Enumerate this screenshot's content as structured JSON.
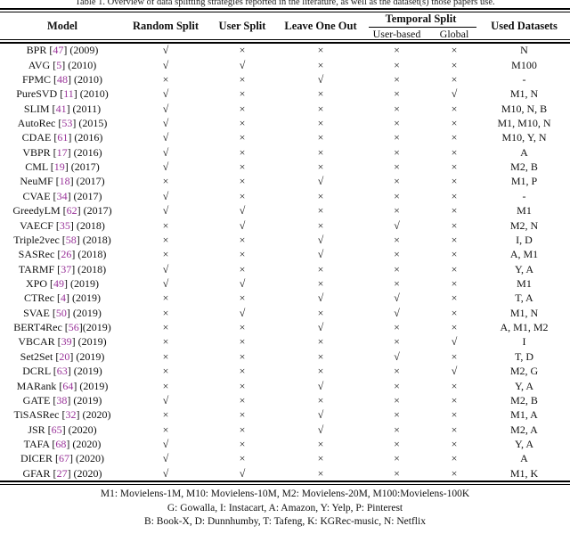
{
  "caption": "Table 1. Overview of data splitting strategies reported in the literature, as well as the dataset(s) those papers use.",
  "colors": {
    "citation": "#993399",
    "text": "#111111",
    "background": "#ffffff"
  },
  "glyphs": {
    "check": "√",
    "cross": "×"
  },
  "header": {
    "model": "Model",
    "random_split": "Random Split",
    "user_split": "User Split",
    "leave_one_out": "Leave One Out",
    "temporal_split": "Temporal Split",
    "user_based": "User-based",
    "global": "Global",
    "used_datasets": "Used Datasets"
  },
  "rows": [
    {
      "model_pre": "BPR [",
      "ref": "47",
      "model_post": "] (2009)",
      "random": "√",
      "user": "×",
      "loo": "×",
      "temporal_user": "×",
      "temporal_global": "×",
      "datasets": "N"
    },
    {
      "model_pre": "AVG [",
      "ref": "5",
      "model_post": "] (2010)",
      "random": "√",
      "user": "√",
      "loo": "×",
      "temporal_user": "×",
      "temporal_global": "×",
      "datasets": "M100"
    },
    {
      "model_pre": "FPMC [",
      "ref": "48",
      "model_post": "] (2010)",
      "random": "×",
      "user": "×",
      "loo": "√",
      "temporal_user": "×",
      "temporal_global": "×",
      "datasets": "-"
    },
    {
      "model_pre": "PureSVD [",
      "ref": "11",
      "model_post": "] (2010)",
      "random": "√",
      "user": "×",
      "loo": "×",
      "temporal_user": "×",
      "temporal_global": "√",
      "datasets": "M1, N"
    },
    {
      "model_pre": "SLIM [",
      "ref": "41",
      "model_post": "] (2011)",
      "random": "√",
      "user": "×",
      "loo": "×",
      "temporal_user": "×",
      "temporal_global": "×",
      "datasets": "M10, N, B"
    },
    {
      "model_pre": "AutoRec [",
      "ref": "53",
      "model_post": "] (2015)",
      "random": "√",
      "user": "×",
      "loo": "×",
      "temporal_user": "×",
      "temporal_global": "×",
      "datasets": "M1, M10, N"
    },
    {
      "model_pre": "CDAE [",
      "ref": "61",
      "model_post": "] (2016)",
      "random": "√",
      "user": "×",
      "loo": "×",
      "temporal_user": "×",
      "temporal_global": "×",
      "datasets": "M10, Y, N"
    },
    {
      "model_pre": "VBPR [",
      "ref": "17",
      "model_post": "] (2016)",
      "random": "√",
      "user": "×",
      "loo": "×",
      "temporal_user": "×",
      "temporal_global": "×",
      "datasets": "A"
    },
    {
      "model_pre": "CML [",
      "ref": "19",
      "model_post": "] (2017)",
      "random": "√",
      "user": "×",
      "loo": "×",
      "temporal_user": "×",
      "temporal_global": "×",
      "datasets": "M2, B"
    },
    {
      "model_pre": "NeuMF [",
      "ref": "18",
      "model_post": "] (2017)",
      "random": "×",
      "user": "×",
      "loo": "√",
      "temporal_user": "×",
      "temporal_global": "×",
      "datasets": "M1, P"
    },
    {
      "model_pre": "CVAE [",
      "ref": "34",
      "model_post": "] (2017)",
      "random": "√",
      "user": "×",
      "loo": "×",
      "temporal_user": "×",
      "temporal_global": "×",
      "datasets": "-"
    },
    {
      "model_pre": "GreedyLM [",
      "ref": "62",
      "model_post": "] (2017)",
      "random": "√",
      "user": "√",
      "loo": "×",
      "temporal_user": "×",
      "temporal_global": "×",
      "datasets": "M1"
    },
    {
      "model_pre": "VAECF [",
      "ref": "35",
      "model_post": "] (2018)",
      "random": "×",
      "user": "√",
      "loo": "×",
      "temporal_user": "√",
      "temporal_global": "×",
      "datasets": "M2, N"
    },
    {
      "model_pre": "Triple2vec [",
      "ref": "58",
      "model_post": "] (2018)",
      "random": "×",
      "user": "×",
      "loo": "√",
      "temporal_user": "×",
      "temporal_global": "×",
      "datasets": "I, D"
    },
    {
      "model_pre": "SASRec [",
      "ref": "26",
      "model_post": "] (2018)",
      "random": "×",
      "user": "×",
      "loo": "√",
      "temporal_user": "×",
      "temporal_global": "×",
      "datasets": "A, M1"
    },
    {
      "model_pre": "TARMF [",
      "ref": "37",
      "model_post": "] (2018)",
      "random": "√",
      "user": "×",
      "loo": "×",
      "temporal_user": "×",
      "temporal_global": "×",
      "datasets": "Y, A"
    },
    {
      "model_pre": "XPO [",
      "ref": "49",
      "model_post": "] (2019)",
      "random": "√",
      "user": "√",
      "loo": "×",
      "temporal_user": "×",
      "temporal_global": "×",
      "datasets": "M1"
    },
    {
      "model_pre": "CTRec [",
      "ref": "4",
      "model_post": "] (2019)",
      "random": "×",
      "user": "×",
      "loo": "√",
      "temporal_user": "√",
      "temporal_global": "×",
      "datasets": "T, A"
    },
    {
      "model_pre": "SVAE [",
      "ref": "50",
      "model_post": "] (2019)",
      "random": "×",
      "user": "√",
      "loo": "×",
      "temporal_user": "√",
      "temporal_global": "×",
      "datasets": "M1, N"
    },
    {
      "model_pre": "BERT4Rec [",
      "ref": "56",
      "model_post": "](2019)",
      "random": "×",
      "user": "×",
      "loo": "√",
      "temporal_user": "×",
      "temporal_global": "×",
      "datasets": "A, M1, M2"
    },
    {
      "model_pre": "VBCAR [",
      "ref": "39",
      "model_post": "] (2019)",
      "random": "×",
      "user": "×",
      "loo": "×",
      "temporal_user": "×",
      "temporal_global": "√",
      "datasets": "I"
    },
    {
      "model_pre": "Set2Set [",
      "ref": "20",
      "model_post": "] (2019)",
      "random": "×",
      "user": "×",
      "loo": "×",
      "temporal_user": "√",
      "temporal_global": "×",
      "datasets": "T, D"
    },
    {
      "model_pre": "DCRL [",
      "ref": "63",
      "model_post": "] (2019)",
      "random": "×",
      "user": "×",
      "loo": "×",
      "temporal_user": "×",
      "temporal_global": "√",
      "datasets": "M2, G"
    },
    {
      "model_pre": "MARank [",
      "ref": "64",
      "model_post": "] (2019)",
      "random": "×",
      "user": "×",
      "loo": "√",
      "temporal_user": "×",
      "temporal_global": "×",
      "datasets": "Y, A"
    },
    {
      "model_pre": "GATE [",
      "ref": "38",
      "model_post": "] (2019)",
      "random": "√",
      "user": "×",
      "loo": "×",
      "temporal_user": "×",
      "temporal_global": "×",
      "datasets": "M2, B"
    },
    {
      "model_pre": "TiSASRec [",
      "ref": "32",
      "model_post": "] (2020)",
      "random": "×",
      "user": "×",
      "loo": "√",
      "temporal_user": "×",
      "temporal_global": "×",
      "datasets": "M1, A"
    },
    {
      "model_pre": "JSR [",
      "ref": "65",
      "model_post": "] (2020)",
      "random": "×",
      "user": "×",
      "loo": "√",
      "temporal_user": "×",
      "temporal_global": "×",
      "datasets": "M2, A"
    },
    {
      "model_pre": "TAFA [",
      "ref": "68",
      "model_post": "] (2020)",
      "random": "√",
      "user": "×",
      "loo": "×",
      "temporal_user": "×",
      "temporal_global": "×",
      "datasets": "Y, A"
    },
    {
      "model_pre": "DICER [",
      "ref": "67",
      "model_post": "] (2020)",
      "random": "√",
      "user": "×",
      "loo": "×",
      "temporal_user": "×",
      "temporal_global": "×",
      "datasets": "A"
    },
    {
      "model_pre": "GFAR [",
      "ref": "27",
      "model_post": "] (2020)",
      "random": "√",
      "user": "√",
      "loo": "×",
      "temporal_user": "×",
      "temporal_global": "×",
      "datasets": "M1, K"
    }
  ],
  "legend": [
    "M1: Movielens-1M, M10: Movielens-10M, M2: Movielens-20M, M100:Movielens-100K",
    "G: Gowalla, I: Instacart, A: Amazon, Y: Yelp, P: Pinterest",
    "B: Book-X, D: Dunnhumby, T: Tafeng, K: KGRec-music, N: Netflix"
  ]
}
